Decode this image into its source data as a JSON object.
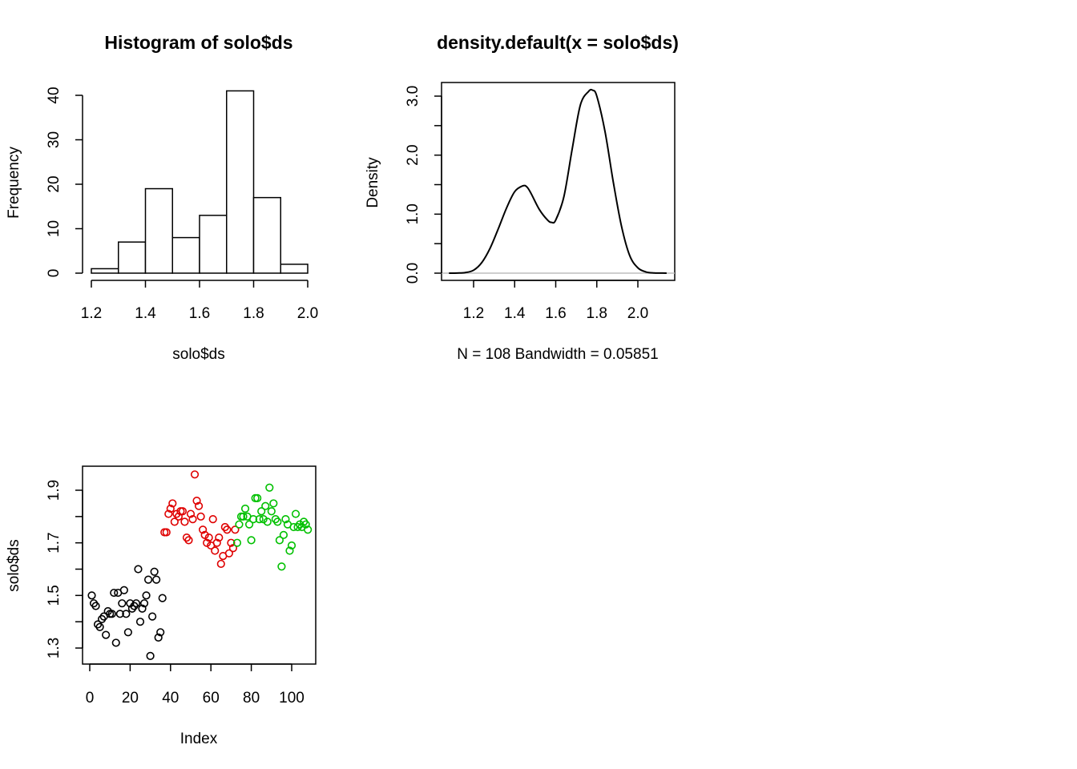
{
  "chart_data": [
    {
      "type": "bar",
      "title": "Histogram of solo$ds",
      "xlabel": "solo$ds",
      "ylabel": "Frequency",
      "bins": [
        [
          1.2,
          1.3
        ],
        [
          1.3,
          1.4
        ],
        [
          1.4,
          1.5
        ],
        [
          1.5,
          1.6
        ],
        [
          1.6,
          1.7
        ],
        [
          1.7,
          1.8
        ],
        [
          1.8,
          1.9
        ],
        [
          1.9,
          2.0
        ]
      ],
      "values": [
        1,
        7,
        19,
        8,
        13,
        41,
        17,
        2
      ],
      "xlim": [
        1.2,
        2.0
      ],
      "ylim": [
        0,
        40
      ],
      "x_ticks": [
        "1.2",
        "1.4",
        "1.6",
        "1.8",
        "2.0"
      ],
      "y_ticks": [
        "0",
        "10",
        "20",
        "30",
        "40"
      ],
      "grid": false
    },
    {
      "type": "line",
      "title": "density.default(x = solo$ds)",
      "xlabel": "N = 108   Bandwidth = 0.05851",
      "ylabel": "Density",
      "x": [
        1.08,
        1.12,
        1.16,
        1.2,
        1.24,
        1.28,
        1.32,
        1.36,
        1.4,
        1.44,
        1.46,
        1.48,
        1.52,
        1.56,
        1.58,
        1.6,
        1.64,
        1.68,
        1.72,
        1.76,
        1.78,
        1.8,
        1.84,
        1.88,
        1.92,
        1.96,
        2.0,
        2.04,
        2.08,
        2.12,
        2.14
      ],
      "y": [
        0.0,
        0.002,
        0.01,
        0.05,
        0.18,
        0.42,
        0.75,
        1.1,
        1.38,
        1.48,
        1.46,
        1.35,
        1.08,
        0.9,
        0.86,
        0.9,
        1.3,
        2.1,
        2.85,
        3.08,
        3.1,
        3.0,
        2.4,
        1.55,
        0.8,
        0.3,
        0.09,
        0.02,
        0.004,
        0.001,
        0.0
      ],
      "xlim": [
        1.08,
        2.14
      ],
      "ylim": [
        0,
        3.2
      ],
      "x_ticks": [
        "1.2",
        "1.4",
        "1.6",
        "1.8",
        "2.0"
      ],
      "y_ticks": [
        "0.0",
        "1.0",
        "2.0",
        "3.0"
      ],
      "grid": false
    },
    {
      "type": "scatter",
      "title": "",
      "xlabel": "Index",
      "ylabel": "solo$ds",
      "xlim": [
        1,
        108
      ],
      "ylim": [
        1.26,
        1.96
      ],
      "x_ticks": [
        "0",
        "20",
        "40",
        "60",
        "80",
        "100"
      ],
      "y_ticks": [
        "1.3",
        "1.5",
        "1.7",
        "1.9"
      ],
      "grid": false,
      "series": [
        {
          "color": "#000000",
          "x": [
            1,
            2,
            3,
            4,
            5,
            6,
            7,
            8,
            9,
            10,
            11,
            12,
            13,
            14,
            15,
            16,
            17,
            18,
            19,
            20,
            21,
            22,
            23,
            24,
            25,
            26,
            27,
            28,
            29,
            30,
            31,
            32,
            33,
            34,
            35,
            36
          ],
          "y": [
            1.5,
            1.47,
            1.46,
            1.39,
            1.38,
            1.41,
            1.42,
            1.35,
            1.44,
            1.43,
            1.43,
            1.51,
            1.32,
            1.51,
            1.43,
            1.47,
            1.52,
            1.43,
            1.36,
            1.47,
            1.45,
            1.46,
            1.47,
            1.6,
            1.4,
            1.45,
            1.47,
            1.5,
            1.56,
            1.27,
            1.42,
            1.59,
            1.56,
            1.34,
            1.36,
            1.49
          ]
        },
        {
          "color": "#DF0000",
          "x": [
            37,
            38,
            39,
            40,
            41,
            42,
            43,
            44,
            45,
            46,
            47,
            48,
            49,
            50,
            51,
            52,
            53,
            54,
            55,
            56,
            57,
            58,
            59,
            60,
            61,
            62,
            63,
            64,
            65,
            66,
            67,
            68,
            69,
            70,
            71,
            72
          ],
          "y": [
            1.74,
            1.74,
            1.81,
            1.83,
            1.85,
            1.78,
            1.81,
            1.8,
            1.82,
            1.82,
            1.78,
            1.72,
            1.71,
            1.81,
            1.79,
            1.96,
            1.86,
            1.84,
            1.8,
            1.75,
            1.73,
            1.7,
            1.72,
            1.69,
            1.79,
            1.67,
            1.7,
            1.72,
            1.62,
            1.65,
            1.76,
            1.75,
            1.66,
            1.7,
            1.68,
            1.75
          ]
        },
        {
          "color": "#00C000",
          "x": [
            73,
            74,
            75,
            76,
            77,
            78,
            79,
            80,
            81,
            82,
            83,
            84,
            85,
            86,
            87,
            88,
            89,
            90,
            91,
            92,
            93,
            94,
            95,
            96,
            97,
            98,
            99,
            100,
            101,
            102,
            103,
            104,
            105,
            106,
            107,
            108
          ],
          "y": [
            1.7,
            1.77,
            1.8,
            1.8,
            1.83,
            1.8,
            1.77,
            1.71,
            1.79,
            1.87,
            1.87,
            1.79,
            1.82,
            1.79,
            1.84,
            1.78,
            1.91,
            1.82,
            1.85,
            1.79,
            1.78,
            1.71,
            1.61,
            1.73,
            1.79,
            1.77,
            1.67,
            1.69,
            1.76,
            1.81,
            1.76,
            1.77,
            1.76,
            1.78,
            1.77,
            1.75
          ]
        }
      ]
    }
  ]
}
